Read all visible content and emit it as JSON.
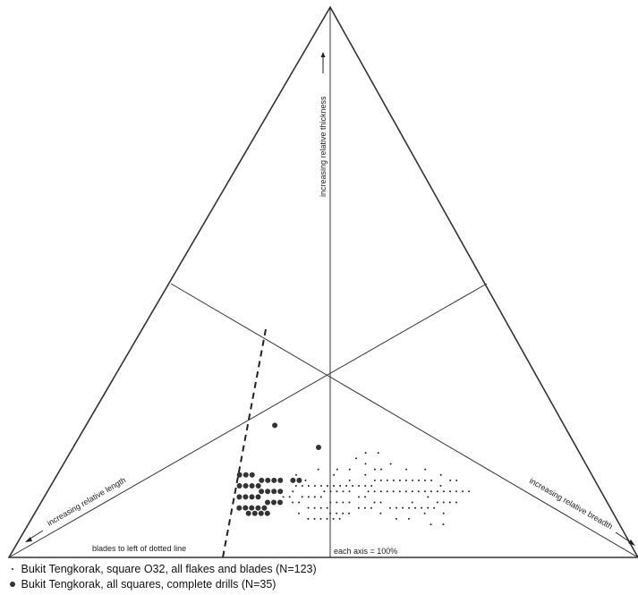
{
  "chart_data": {
    "type": "scatter",
    "title": "",
    "axes": {
      "thickness_label": "increasing relative thickness",
      "length_label": "increasing relative length",
      "breadth_label": "increasing relative breadth",
      "scale_note": "each axis = 100%",
      "blade_note": "blades to left of dotted line"
    },
    "series": [
      {
        "name": "Bukit Tengkorak, square O32, all flakes and blades (N=123)",
        "marker": "small-dot",
        "points": [
          [
            48,
            41,
            11
          ],
          [
            47,
            42,
            11
          ],
          [
            46,
            43,
            11
          ],
          [
            50,
            40,
            10
          ],
          [
            49,
            39,
            12
          ],
          [
            45,
            44,
            11
          ],
          [
            44,
            43,
            13
          ],
          [
            47,
            44,
            9
          ],
          [
            43,
            45,
            12
          ],
          [
            51,
            38,
            11
          ],
          [
            46,
            41,
            13
          ],
          [
            48,
            43,
            9
          ],
          [
            42,
            46,
            12
          ],
          [
            50,
            42,
            8
          ],
          [
            45,
            42,
            13
          ],
          [
            44,
            46,
            10
          ],
          [
            49,
            41,
            10
          ],
          [
            47,
            40,
            13
          ],
          [
            43,
            44,
            13
          ],
          [
            52,
            38,
            10
          ],
          [
            41,
            47,
            12
          ],
          [
            46,
            45,
            9
          ],
          [
            48,
            39,
            13
          ],
          [
            45,
            46,
            9
          ],
          [
            40,
            48,
            12
          ],
          [
            44,
            44,
            12
          ],
          [
            50,
            39,
            11
          ],
          [
            42,
            45,
            13
          ],
          [
            47,
            46,
            7
          ],
          [
            43,
            47,
            10
          ],
          [
            49,
            44,
            7
          ],
          [
            46,
            40,
            14
          ],
          [
            39,
            48,
            13
          ],
          [
            45,
            47,
            8
          ],
          [
            41,
            46,
            13
          ],
          [
            48,
            45,
            7
          ],
          [
            44,
            48,
            8
          ],
          [
            40,
            47,
            13
          ],
          [
            42,
            48,
            10
          ],
          [
            46,
            47,
            7
          ],
          [
            38,
            49,
            13
          ],
          [
            43,
            49,
            8
          ],
          [
            47,
            38,
            15
          ],
          [
            41,
            49,
            10
          ],
          [
            39,
            50,
            11
          ],
          [
            45,
            48,
            7
          ],
          [
            37,
            51,
            12
          ],
          [
            42,
            50,
            8
          ],
          [
            40,
            51,
            9
          ],
          [
            36,
            52,
            12
          ],
          [
            38,
            51,
            11
          ],
          [
            44,
            49,
            7
          ],
          [
            41,
            44,
            15
          ],
          [
            35,
            53,
            12
          ],
          [
            39,
            47,
            14
          ],
          [
            37,
            50,
            13
          ],
          [
            43,
            41,
            16
          ],
          [
            36,
            54,
            10
          ],
          [
            34,
            54,
            12
          ],
          [
            38,
            53,
            9
          ],
          [
            40,
            44,
            16
          ],
          [
            35,
            51,
            14
          ],
          [
            33,
            55,
            12
          ],
          [
            37,
            55,
            8
          ],
          [
            36,
            49,
            15
          ],
          [
            34,
            52,
            14
          ],
          [
            39,
            52,
            9
          ],
          [
            32,
            56,
            12
          ],
          [
            35,
            56,
            9
          ],
          [
            33,
            53,
            14
          ],
          [
            38,
            46,
            16
          ],
          [
            31,
            57,
            12
          ],
          [
            34,
            57,
            9
          ],
          [
            36,
            46,
            18
          ],
          [
            32,
            54,
            14
          ],
          [
            30,
            58,
            12
          ],
          [
            37,
            53,
            10
          ],
          [
            33,
            58,
            9
          ],
          [
            35,
            48,
            17
          ],
          [
            31,
            55,
            14
          ],
          [
            29,
            59,
            12
          ],
          [
            30,
            56,
            14
          ],
          [
            34,
            50,
            16
          ],
          [
            28,
            60,
            12
          ],
          [
            32,
            59,
            9
          ],
          [
            36,
            51,
            13
          ],
          [
            29,
            57,
            14
          ],
          [
            33,
            51,
            16
          ],
          [
            31,
            60,
            9
          ],
          [
            27,
            61,
            12
          ],
          [
            35,
            58,
            7
          ],
          [
            30,
            61,
            9
          ],
          [
            28,
            58,
            14
          ],
          [
            26,
            62,
            12
          ],
          [
            34,
            47,
            19
          ],
          [
            32,
            49,
            19
          ],
          [
            29,
            62,
            9
          ],
          [
            27,
            59,
            14
          ],
          [
            25,
            63,
            12
          ],
          [
            33,
            60,
            7
          ],
          [
            28,
            63,
            9
          ],
          [
            31,
            52,
            17
          ],
          [
            26,
            60,
            14
          ],
          [
            24,
            64,
            12
          ],
          [
            30,
            62,
            8
          ],
          [
            25,
            62,
            13
          ],
          [
            27,
            63,
            10
          ],
          [
            29,
            55,
            16
          ],
          [
            23,
            65,
            12
          ],
          [
            24,
            61,
            15
          ],
          [
            31,
            59,
            10
          ],
          [
            22,
            66,
            12
          ],
          [
            26,
            64,
            10
          ],
          [
            28,
            61,
            11
          ],
          [
            25,
            65,
            10
          ],
          [
            23,
            63,
            14
          ],
          [
            21,
            67,
            12
          ],
          [
            27,
            65,
            8
          ],
          [
            24,
            66,
            10
          ],
          [
            30,
            64,
            6
          ],
          [
            26,
            58,
            16
          ],
          [
            22,
            64,
            14
          ],
          [
            28,
            66,
            6
          ]
        ]
      },
      {
        "name": "Bukit Tengkorak, all squares, complete drills (N=35)",
        "marker": "big-dot",
        "points": [
          [
            56,
            33,
            11
          ],
          [
            55,
            34,
            11
          ],
          [
            57,
            32,
            11
          ],
          [
            54,
            33,
            13
          ],
          [
            56,
            35,
            9
          ],
          [
            55,
            32,
            13
          ],
          [
            58,
            31,
            11
          ],
          [
            53,
            35,
            12
          ],
          [
            57,
            34,
            9
          ],
          [
            54,
            36,
            10
          ],
          [
            56,
            31,
            13
          ],
          [
            52,
            36,
            12
          ],
          [
            58,
            33,
            9
          ],
          [
            55,
            36,
            9
          ],
          [
            53,
            33,
            14
          ],
          [
            57,
            30,
            13
          ],
          [
            59,
            32,
            9
          ],
          [
            54,
            34,
            12
          ],
          [
            52,
            34,
            14
          ],
          [
            56,
            36,
            8
          ],
          [
            55,
            30,
            15
          ],
          [
            58,
            34,
            8
          ],
          [
            53,
            37,
            10
          ],
          [
            51,
            35,
            14
          ],
          [
            57,
            35,
            8
          ],
          [
            54,
            31,
            15
          ],
          [
            56,
            29,
            15
          ],
          [
            52,
            38,
            10
          ],
          [
            50,
            36,
            14
          ],
          [
            55,
            37,
            8
          ],
          [
            51,
            37,
            12
          ],
          [
            48,
            38,
            14
          ],
          [
            47,
            39,
            14
          ],
          [
            46,
            30,
            24
          ],
          [
            41,
            39,
            20
          ]
        ]
      }
    ],
    "notes": "Ternary diagram: top apex = relative thickness, lower-left apex = relative length, lower-right apex = relative breadth; values are percent shares (length, breadth, thickness) summing to 100."
  }
}
